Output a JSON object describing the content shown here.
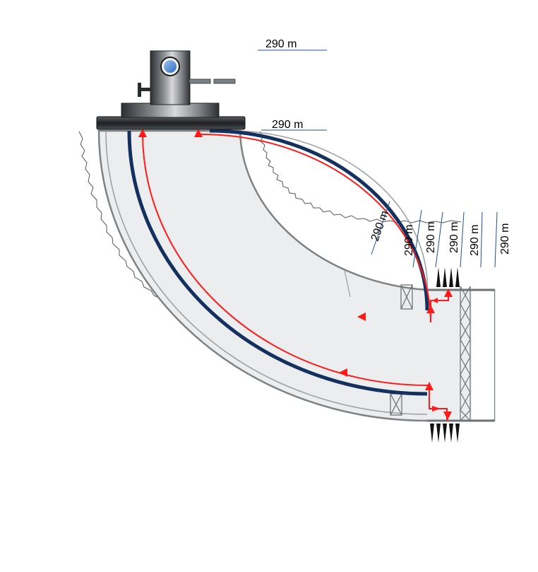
{
  "labels": {
    "top_1": "290 m",
    "top_2": "290 m",
    "right_1": "290 m",
    "right_2": "290 m",
    "right_3": "290 m",
    "right_4": "290 m",
    "right_5": "290 m",
    "right_6": "290 m"
  },
  "colors": {
    "tubing": "#13305e",
    "flow": "#ff1a1a",
    "casing_fill": "#e9ecee",
    "casing_wall": "#8c9092",
    "wellhead_dark": "#2a2d30",
    "gauge": "#3e7fd1",
    "marker_line": "#1f4f9b"
  }
}
